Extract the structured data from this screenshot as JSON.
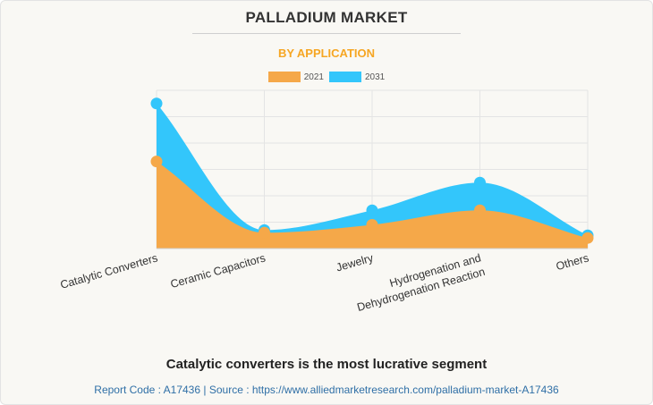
{
  "header": {
    "title": "PALLADIUM MARKET",
    "subtitle": "BY APPLICATION"
  },
  "legend": [
    {
      "label": "2021",
      "color": "#f5a849"
    },
    {
      "label": "2031",
      "color": "#33c6fb"
    }
  ],
  "chart_data": {
    "type": "area",
    "title": "PALLADIUM MARKET",
    "subtitle": "BY APPLICATION",
    "categories": [
      "Catalytic Converters",
      "Ceramic Capacitors",
      "Jewelry",
      "Hydrogenation and Dehydrogenation Reaction",
      "Others"
    ],
    "category_label_lines": [
      [
        "Catalytic Converters"
      ],
      [
        "Ceramic Capacitors"
      ],
      [
        "Jewelry"
      ],
      [
        "Hydrogenation and",
        "Dehydrogenation Reaction"
      ],
      [
        "Others"
      ]
    ],
    "series": [
      {
        "name": "2021",
        "color": "#f5a849",
        "values": [
          3.3,
          0.6,
          0.9,
          1.45,
          0.4
        ]
      },
      {
        "name": "2031",
        "color": "#33c6fb",
        "values": [
          5.5,
          0.7,
          1.45,
          2.5,
          0.5
        ]
      }
    ],
    "ylim": [
      0,
      6
    ],
    "y_axis_labels_shown": false,
    "grid": true,
    "legend_position": "top-center",
    "smooth": true
  },
  "footer": {
    "headline": "Catalytic converters is the most lucrative segment",
    "report_code": "Report Code : A17436",
    "separator": "|",
    "source": "Source : https://www.alliedmarketresearch.com/palladium-market-A17436"
  }
}
